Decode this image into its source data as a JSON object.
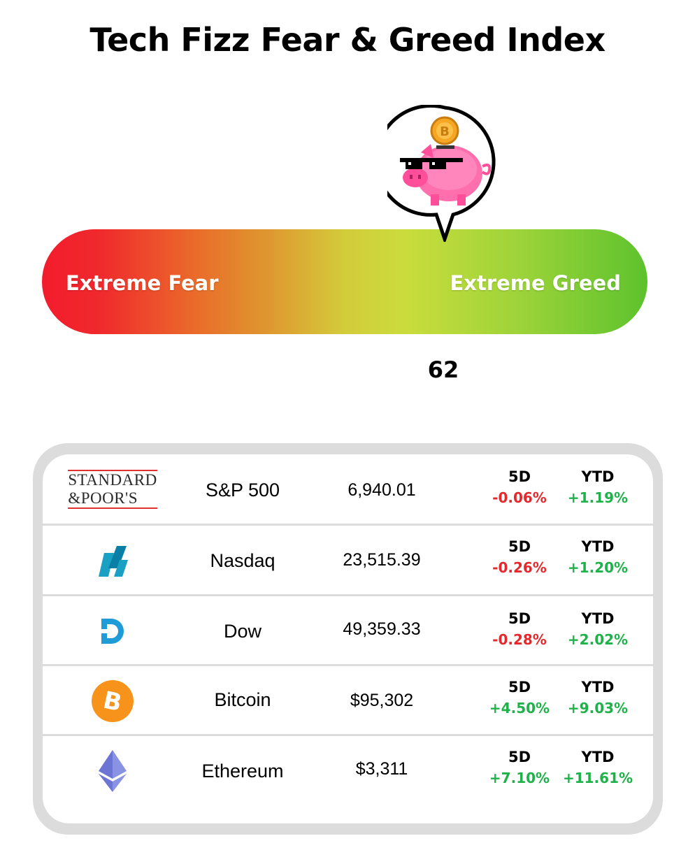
{
  "title": "Tech Fizz Fear & Greed Index",
  "gauge": {
    "left_label": "Extreme Fear",
    "right_label": "Extreme Greed",
    "value": "62",
    "marker_icon": "piggy-bank-sunglasses-icon",
    "colors": {
      "fear": "#f21c2c",
      "neutral": "#d3cc3b",
      "greed": "#5ec22d"
    }
  },
  "table": {
    "stat_headers": {
      "five_day": "5D",
      "ytd": "YTD"
    },
    "colors": {
      "negative": "#e5282b",
      "positive": "#1fb24a"
    },
    "rows": [
      {
        "logo": "standard-and-poors-logo",
        "logo_text_1": "STANDARD",
        "logo_text_2": "&POOR'S",
        "name": "S&P 500",
        "price": "6,940.01",
        "five_day": "-0.06%",
        "ytd": "+1.19%"
      },
      {
        "logo": "nasdaq-logo",
        "name": "Nasdaq",
        "price": "23,515.39",
        "five_day": "-0.26%",
        "ytd": "+1.20%"
      },
      {
        "logo": "dow-logo",
        "name": "Dow",
        "price": "49,359.33",
        "five_day": "-0.28%",
        "ytd": "+2.02%"
      },
      {
        "logo": "bitcoin-logo",
        "name": "Bitcoin",
        "price": "$95,302",
        "five_day": "+4.50%",
        "ytd": "+9.03%"
      },
      {
        "logo": "ethereum-logo",
        "name": "Ethereum",
        "price": "$3,311",
        "five_day": "+7.10%",
        "ytd": "+11.61%"
      }
    ]
  }
}
